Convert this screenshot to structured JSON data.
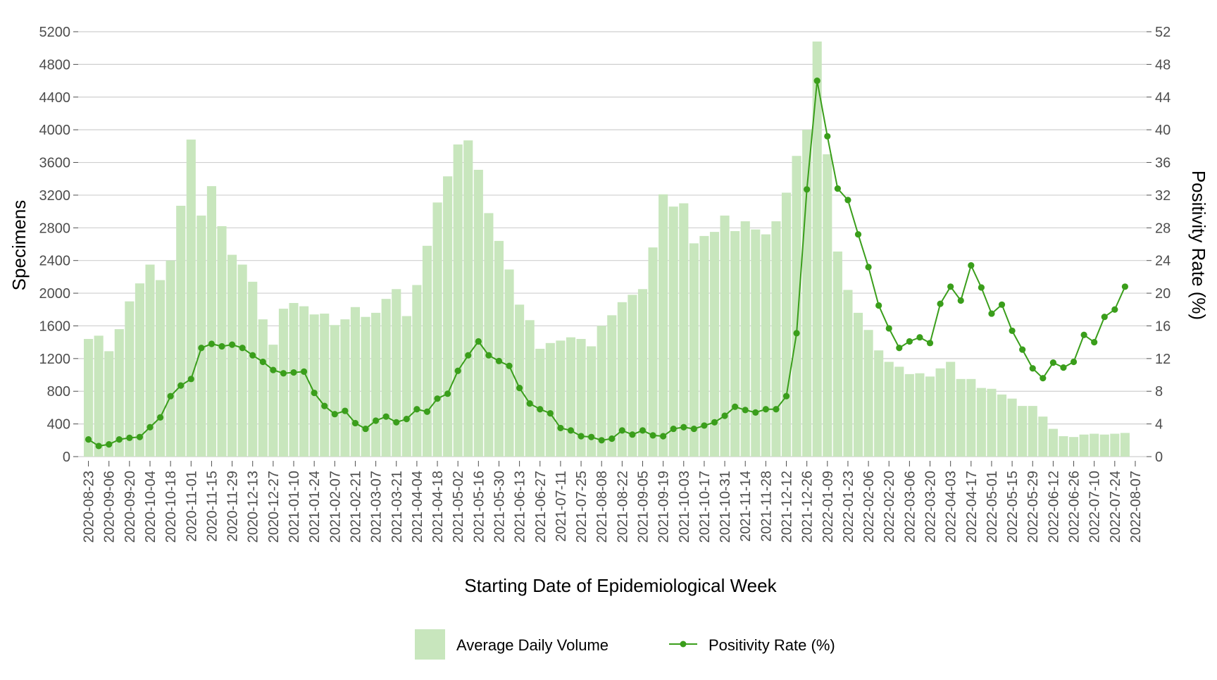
{
  "chart_data": {
    "type": "bar+line",
    "title": "",
    "xlabel": "Starting Date of Epidemiological Week",
    "ylabel": "Specimens",
    "y2label": "Positivity Rate (%)",
    "ylim": [
      0,
      5200
    ],
    "y2lim": [
      0,
      52
    ],
    "yticks": [
      "0",
      "400",
      "800",
      "1200",
      "1600",
      "2000",
      "2400",
      "2800",
      "3200",
      "3600",
      "4000",
      "4400",
      "4800",
      "5200"
    ],
    "y2ticks": [
      "0",
      "4",
      "8",
      "12",
      "16",
      "20",
      "24",
      "28",
      "32",
      "36",
      "40",
      "44",
      "48",
      "52"
    ],
    "x_tick_labels": [
      "2020-08-23",
      "2020-09-06",
      "2020-09-20",
      "2020-10-04",
      "2020-10-18",
      "2020-11-01",
      "2020-11-15",
      "2020-11-29",
      "2020-12-13",
      "2020-12-27",
      "2021-01-10",
      "2021-01-24",
      "2021-02-07",
      "2021-02-21",
      "2021-03-07",
      "2021-03-21",
      "2021-04-04",
      "2021-04-18",
      "2021-05-02",
      "2021-05-16",
      "2021-05-30",
      "2021-06-13",
      "2021-06-27",
      "2021-07-11",
      "2021-07-25",
      "2021-08-08",
      "2021-08-22",
      "2021-09-05",
      "2021-09-19",
      "2021-10-03",
      "2021-10-17",
      "2021-10-31",
      "2021-11-14",
      "2021-11-28",
      "2021-12-12",
      "2021-12-26",
      "2022-01-09",
      "2022-01-23",
      "2022-02-06",
      "2022-02-20",
      "2022-03-06",
      "2022-03-20",
      "2022-04-03",
      "2022-04-17",
      "2022-05-01",
      "2022-05-15",
      "2022-05-29",
      "2022-06-12",
      "2022-06-26",
      "2022-07-10",
      "2022-07-24",
      "2022-08-07"
    ],
    "grid": true,
    "legend_position": "bottom",
    "series": [
      {
        "name": "Average Daily Volume",
        "type": "bar",
        "axis": "left",
        "color": "#c8e6bd",
        "values": [
          1440,
          1480,
          1290,
          1560,
          1900,
          2120,
          2350,
          2160,
          2400,
          3070,
          3880,
          2950,
          3310,
          2820,
          2470,
          2350,
          2140,
          1680,
          1370,
          1810,
          1880,
          1840,
          1740,
          1750,
          1610,
          1680,
          1830,
          1710,
          1760,
          1930,
          2050,
          1720,
          2100,
          2580,
          3110,
          3430,
          3820,
          3870,
          3510,
          2980,
          2640,
          2290,
          1860,
          1670,
          1320,
          1390,
          1420,
          1460,
          1440,
          1350,
          1600,
          1730,
          1890,
          1980,
          2050,
          2560,
          3210,
          3060,
          3100,
          2610,
          2700,
          2750,
          2950,
          2760,
          2880,
          2780,
          2720,
          2880,
          3230,
          3680,
          4000,
          5080,
          3700,
          2510,
          2040,
          1760,
          1550,
          1300,
          1160,
          1100,
          1010,
          1020,
          980,
          1080,
          1160,
          950,
          950,
          840,
          830,
          760,
          710,
          620,
          620,
          490,
          340,
          250,
          240,
          270,
          280,
          270,
          280,
          290
        ]
      },
      {
        "name": "Positivity Rate (%)",
        "type": "line",
        "axis": "right",
        "color": "#3a9e1b",
        "values": [
          2.1,
          1.3,
          1.5,
          2.1,
          2.3,
          2.4,
          3.6,
          4.8,
          7.4,
          8.7,
          9.5,
          13.3,
          13.8,
          13.5,
          13.7,
          13.3,
          12.4,
          11.6,
          10.6,
          10.2,
          10.3,
          10.4,
          7.8,
          6.2,
          5.2,
          5.6,
          4.1,
          3.4,
          4.4,
          4.9,
          4.2,
          4.6,
          5.8,
          5.5,
          7.1,
          7.7,
          10.5,
          12.4,
          14.1,
          12.4,
          11.7,
          11.1,
          8.4,
          6.5,
          5.8,
          5.3,
          3.5,
          3.2,
          2.5,
          2.4,
          2.0,
          2.2,
          3.2,
          2.7,
          3.2,
          2.6,
          2.5,
          3.4,
          3.6,
          3.4,
          3.8,
          4.2,
          5.0,
          6.1,
          5.7,
          5.4,
          5.8,
          5.8,
          7.4,
          15.1,
          32.7,
          46.0,
          39.2,
          32.8,
          31.4,
          27.2,
          23.2,
          18.5,
          15.7,
          13.3,
          14.1,
          14.6,
          13.9,
          18.7,
          20.8,
          19.1,
          23.4,
          20.7,
          17.5,
          18.6,
          15.4,
          13.1,
          10.8,
          9.6,
          11.5,
          10.9,
          11.6,
          14.9,
          14.0,
          17.1,
          18.0,
          20.8
        ]
      }
    ]
  }
}
